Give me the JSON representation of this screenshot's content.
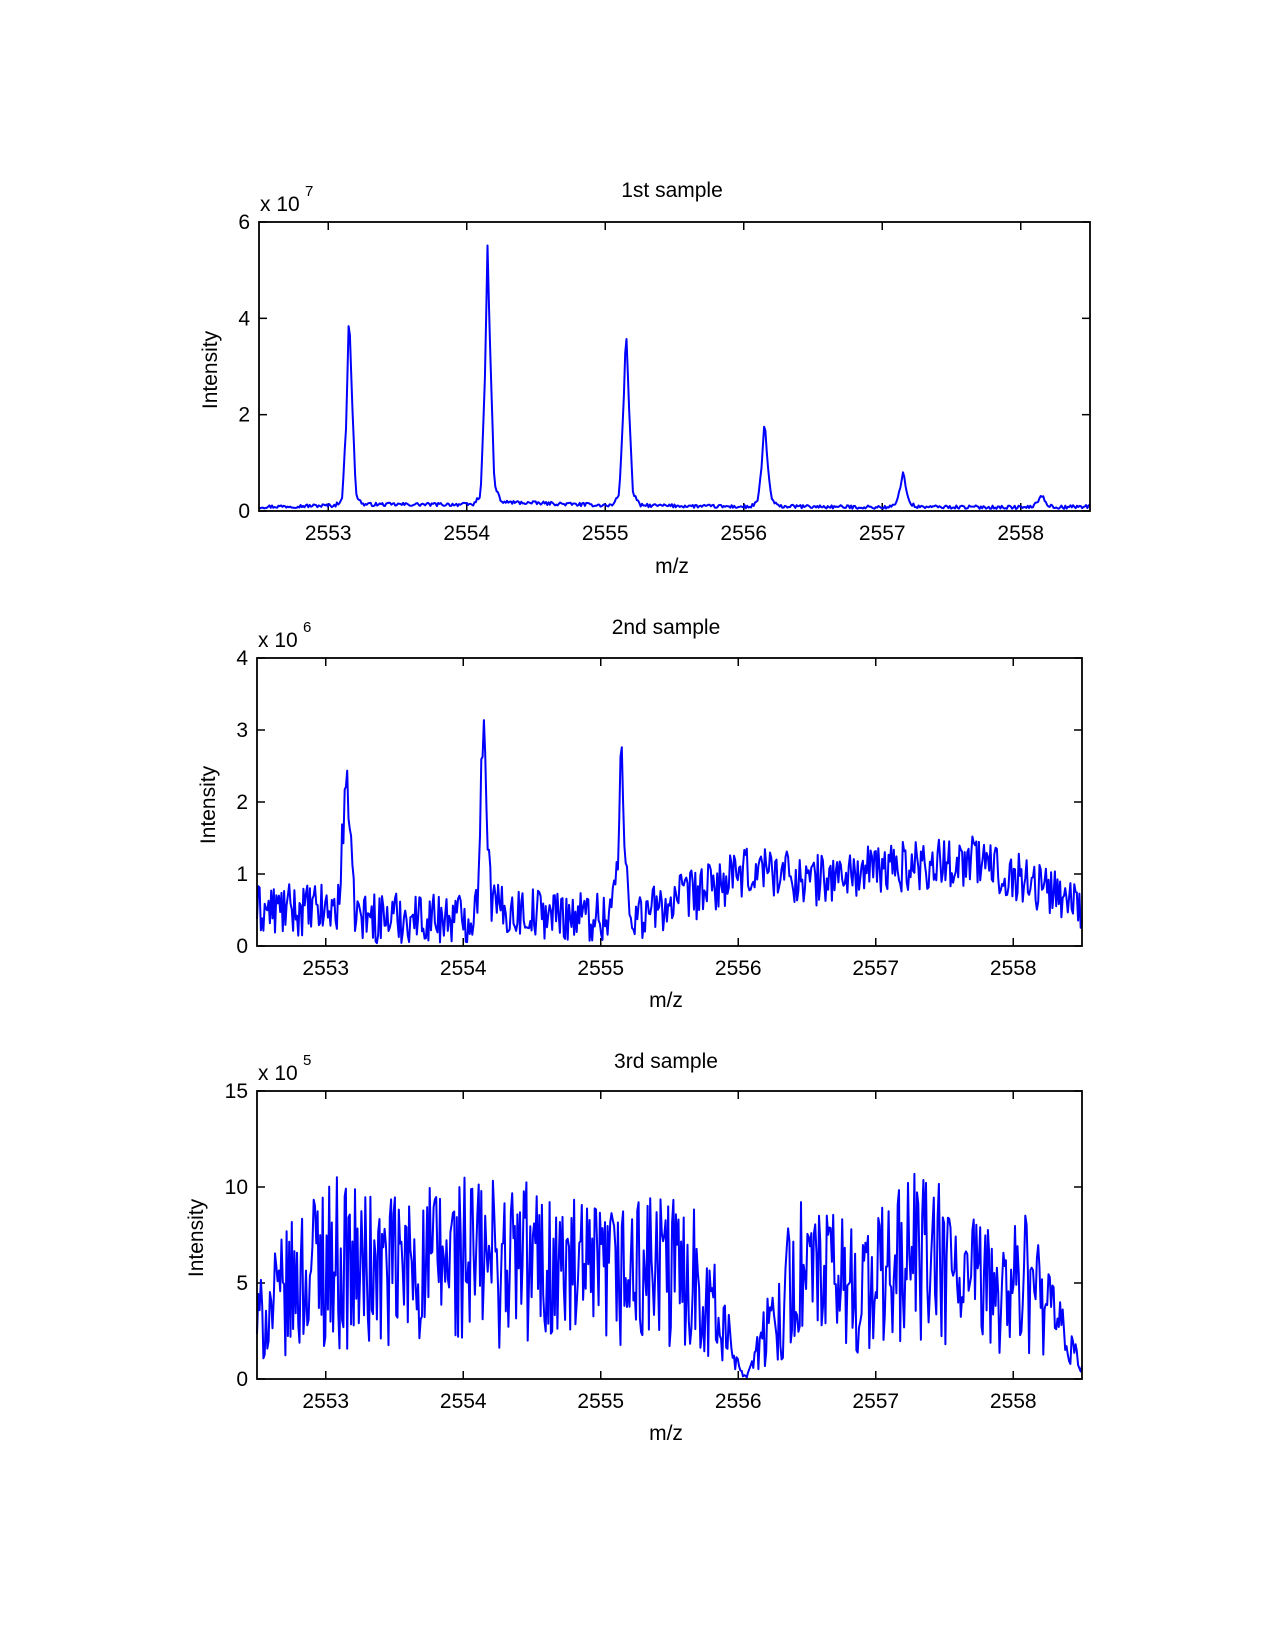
{
  "chart_data": [
    {
      "type": "line",
      "title": "1st sample",
      "xlabel": "m/z",
      "ylabel": "Intensity",
      "exponent_base": "x 10",
      "exponent_power": "7",
      "xlim": [
        2552.5,
        2558.5
      ],
      "ylim": [
        0,
        6
      ],
      "xticks": [
        "2553",
        "2554",
        "2555",
        "2556",
        "2557",
        "2558"
      ],
      "yticks": [
        "0",
        "2",
        "4",
        "6"
      ],
      "grid": false,
      "line_color": "#0000ff",
      "noise": "low",
      "series": [
        {
          "x": [
            2552.5,
            2553.05,
            2553.1,
            2553.13,
            2553.15,
            2553.17,
            2553.2,
            2553.25,
            2554.05,
            2554.1,
            2554.13,
            2554.15,
            2554.17,
            2554.2,
            2554.25,
            2555.05,
            2555.1,
            2555.13,
            2555.15,
            2555.17,
            2555.2,
            2555.25,
            2556.05,
            2556.1,
            2556.13,
            2556.15,
            2556.17,
            2556.2,
            2556.25,
            2557.05,
            2557.1,
            2557.13,
            2557.15,
            2557.17,
            2557.2,
            2557.25,
            2558.05,
            2558.1,
            2558.13,
            2558.15,
            2558.17,
            2558.2,
            2558.25,
            2558.5
          ],
          "y": [
            0.05,
            0.08,
            0.2,
            1.8,
            4.2,
            2.4,
            0.3,
            0.1,
            0.1,
            0.3,
            2.5,
            5.45,
            3.2,
            0.5,
            0.15,
            0.08,
            0.3,
            2.0,
            3.8,
            2.2,
            0.35,
            0.08,
            0.05,
            0.15,
            0.9,
            1.9,
            1.0,
            0.2,
            0.06,
            0.04,
            0.1,
            0.45,
            0.8,
            0.45,
            0.12,
            0.05,
            0.04,
            0.08,
            0.2,
            0.3,
            0.2,
            0.08,
            0.04,
            0.06
          ]
        }
      ]
    },
    {
      "type": "line",
      "title": "2nd sample",
      "xlabel": "m/z",
      "ylabel": "Intensity",
      "exponent_base": "x 10",
      "exponent_power": "6",
      "xlim": [
        2552.5,
        2558.5
      ],
      "ylim": [
        0,
        4
      ],
      "xticks": [
        "2553",
        "2554",
        "2555",
        "2556",
        "2557",
        "2558"
      ],
      "yticks": [
        "0",
        "1",
        "2",
        "3",
        "4"
      ],
      "grid": false,
      "line_color": "#0000ff",
      "noise": "medium",
      "series": [
        {
          "x": [
            2552.5,
            2553.05,
            2553.1,
            2553.13,
            2553.15,
            2553.17,
            2553.2,
            2553.25,
            2554.05,
            2554.1,
            2554.13,
            2554.15,
            2554.17,
            2554.2,
            2554.25,
            2555.05,
            2555.1,
            2555.13,
            2555.15,
            2555.17,
            2555.2,
            2555.25,
            2556.2,
            2556.5,
            2557.15,
            2557.72,
            2558.5
          ],
          "y": [
            0.5,
            0.5,
            0.6,
            1.8,
            2.65,
            1.7,
            0.6,
            0.4,
            0.4,
            0.6,
            2.2,
            3.4,
            2.0,
            0.7,
            0.5,
            0.4,
            0.8,
            1.2,
            2.95,
            1.5,
            0.7,
            0.4,
            1.1,
            0.9,
            1.1,
            1.2,
            0.6
          ]
        }
      ]
    },
    {
      "type": "line",
      "title": "3rd sample",
      "xlabel": "m/z",
      "ylabel": "Intensity",
      "exponent_base": "x 10",
      "exponent_power": "5",
      "xlim": [
        2552.5,
        2558.5
      ],
      "ylim": [
        0,
        15
      ],
      "xticks": [
        "2553",
        "2554",
        "2555",
        "2556",
        "2557",
        "2558"
      ],
      "yticks": [
        "0",
        "5",
        "10",
        "15"
      ],
      "grid": false,
      "line_color": "#0000ff",
      "noise": "high",
      "series": [
        {
          "x": [
            2552.5,
            2552.97,
            2553.38,
            2553.95,
            2554.15,
            2554.43,
            2554.9,
            2555.4,
            2555.7,
            2556.05,
            2556.43,
            2556.95,
            2557.28,
            2557.75,
            2558.12,
            2558.5
          ],
          "y": [
            5.0,
            11.0,
            9.5,
            10.8,
            10.7,
            10.8,
            9.0,
            9.7,
            9.5,
            0.2,
            9.6,
            8.2,
            11.4,
            8.2,
            8.7,
            1.0
          ]
        }
      ]
    }
  ]
}
